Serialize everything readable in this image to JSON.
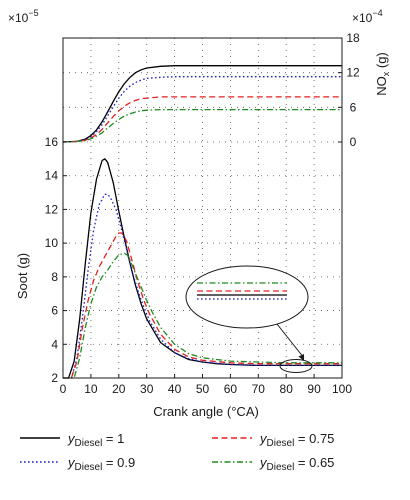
{
  "chart_data": {
    "type": "line",
    "xlabel": "Crank angle (°CA)",
    "x_ticks": [
      "0",
      "10",
      "20",
      "30",
      "40",
      "50",
      "60",
      "70",
      "80",
      "90",
      "100"
    ],
    "xlim": [
      0,
      100
    ],
    "grid": "dotted",
    "legend_placement": "bottom",
    "soot": {
      "ylabel": "Soot (g)",
      "multiplier": "×10",
      "multiplier_exp": "−5",
      "ylim": [
        2,
        16
      ],
      "y_ticks": [
        "2",
        "4",
        "6",
        "8",
        "10",
        "12",
        "14",
        "16"
      ]
    },
    "nox": {
      "ylabel_main": "NO",
      "ylabel_sub": "x",
      "ylabel_unit": " (g)",
      "multiplier": "×10",
      "multiplier_exp": "−4",
      "ylim": [
        0,
        18
      ],
      "y_ticks": [
        "0",
        "6",
        "12",
        "18"
      ]
    },
    "legend_symbol": "y",
    "legend_sub": "Diesel",
    "series": [
      {
        "name": "yDiesel = 1",
        "value_label": " = 1",
        "color": "#000000",
        "dash": "",
        "soot": {
          "x": [
            0,
            2,
            4,
            6,
            8,
            10,
            12,
            14,
            15,
            16,
            18,
            20,
            22,
            24,
            26,
            28,
            30,
            35,
            40,
            45,
            50,
            55,
            60,
            70,
            80,
            90,
            100
          ],
          "y": [
            2,
            2,
            3.0,
            5.5,
            8.8,
            11.8,
            13.8,
            14.9,
            15.0,
            14.8,
            13.6,
            11.9,
            10.3,
            8.8,
            7.5,
            6.4,
            5.5,
            4.1,
            3.5,
            3.1,
            2.95,
            2.85,
            2.8,
            2.75,
            2.75,
            2.75,
            2.75
          ]
        },
        "nox": {
          "x": [
            0,
            5,
            8,
            10,
            12,
            14,
            16,
            18,
            20,
            22,
            24,
            26,
            28,
            30,
            35,
            40,
            50,
            60,
            70,
            80,
            90,
            100
          ],
          "y": [
            0,
            0.1,
            0.5,
            1.1,
            2.1,
            3.5,
            5.2,
            7.0,
            8.7,
            10.1,
            11.2,
            12.0,
            12.5,
            12.8,
            13.1,
            13.2,
            13.2,
            13.2,
            13.2,
            13.2,
            13.2,
            13.2
          ]
        }
      },
      {
        "name": "yDiesel = 0.9",
        "value_label": " = 0.9",
        "color": "#1f1fc9",
        "dash": "1.6,2.4",
        "soot": {
          "x": [
            0,
            3,
            5,
            7,
            9,
            11,
            13,
            15,
            16,
            17,
            19,
            21,
            23,
            25,
            27,
            29,
            31,
            35,
            40,
            45,
            50,
            60,
            70,
            80,
            90,
            100
          ],
          "y": [
            2,
            2,
            3.2,
            5.6,
            8.4,
            10.8,
            12.3,
            12.9,
            12.9,
            12.7,
            12.0,
            10.8,
            9.5,
            8.2,
            7.1,
            6.2,
            5.4,
            4.3,
            3.5,
            3.15,
            2.95,
            2.8,
            2.75,
            2.75,
            2.75,
            2.75
          ]
        },
        "nox": {
          "x": [
            0,
            5,
            8,
            10,
            12,
            14,
            16,
            18,
            20,
            22,
            24,
            26,
            28,
            30,
            35,
            40,
            50,
            60,
            70,
            80,
            90,
            100
          ],
          "y": [
            0,
            0.1,
            0.4,
            0.9,
            1.8,
            3.0,
            4.5,
            6.1,
            7.6,
            8.8,
            9.7,
            10.3,
            10.7,
            11.0,
            11.2,
            11.3,
            11.3,
            11.3,
            11.3,
            11.3,
            11.3,
            11.3
          ]
        }
      },
      {
        "name": "yDiesel = 0.75",
        "value_label": " = 0.75",
        "color": "#e02020",
        "dash": "6,3.5",
        "soot": {
          "x": [
            0,
            3,
            5,
            7,
            9,
            11,
            13,
            15,
            17,
            19,
            20,
            21,
            22,
            23,
            25,
            27,
            29,
            31,
            35,
            40,
            45,
            50,
            60,
            70,
            80,
            90,
            100
          ],
          "y": [
            2,
            2,
            3.0,
            5.0,
            6.6,
            7.8,
            8.6,
            9.2,
            9.8,
            10.4,
            10.6,
            10.6,
            10.4,
            10.0,
            8.8,
            7.6,
            6.6,
            5.8,
            4.6,
            3.7,
            3.25,
            3.05,
            2.9,
            2.85,
            2.85,
            2.85,
            2.85
          ]
        },
        "nox": {
          "x": [
            0,
            5,
            8,
            10,
            12,
            14,
            16,
            18,
            20,
            22,
            24,
            26,
            28,
            30,
            35,
            40,
            50,
            60,
            70,
            80,
            90,
            100
          ],
          "y": [
            0,
            0.1,
            0.3,
            0.7,
            1.3,
            2.2,
            3.3,
            4.4,
            5.4,
            6.2,
            6.8,
            7.2,
            7.5,
            7.6,
            7.8,
            7.8,
            7.8,
            7.8,
            7.8,
            7.8,
            7.8,
            7.8
          ]
        }
      },
      {
        "name": "yDiesel = 0.65",
        "value_label": " = 0.65",
        "color": "#1f8a1f",
        "dash": "6,2.5,1.5,2.5",
        "soot": {
          "x": [
            0,
            4,
            6,
            8,
            10,
            12,
            14,
            16,
            18,
            20,
            22,
            23,
            24,
            26,
            28,
            30,
            32,
            35,
            40,
            45,
            50,
            60,
            70,
            80,
            90,
            100
          ],
          "y": [
            2,
            2,
            3.2,
            5.0,
            6.4,
            7.4,
            8.0,
            8.4,
            8.9,
            9.3,
            9.4,
            9.3,
            9.0,
            8.2,
            7.4,
            6.6,
            5.9,
            5.0,
            4.0,
            3.45,
            3.2,
            3.0,
            2.95,
            2.9,
            2.9,
            2.9
          ]
        },
        "nox": {
          "x": [
            0,
            5,
            8,
            10,
            12,
            14,
            16,
            18,
            20,
            22,
            24,
            26,
            28,
            30,
            35,
            40,
            50,
            60,
            70,
            80,
            90,
            100
          ],
          "y": [
            0,
            0.1,
            0.25,
            0.55,
            1.0,
            1.6,
            2.4,
            3.2,
            3.9,
            4.5,
            4.9,
            5.2,
            5.4,
            5.5,
            5.6,
            5.6,
            5.6,
            5.6,
            5.6,
            5.6,
            5.6,
            5.6
          ]
        }
      }
    ]
  }
}
